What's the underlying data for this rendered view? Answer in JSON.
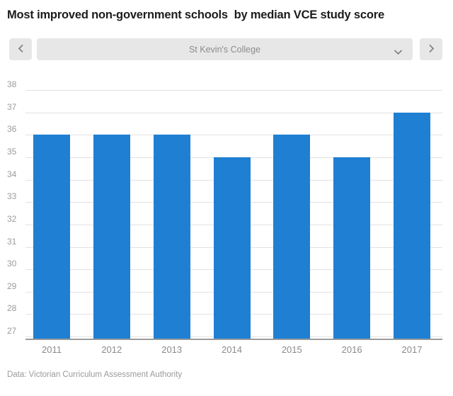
{
  "title": "Most improved non-government schools  by median VCE study score",
  "controls": {
    "selected_school": "St Kevin's College",
    "prev_icon": "chevron-left",
    "next_icon": "chevron-right",
    "dropdown_icon": "chevron-down"
  },
  "chart_data": {
    "type": "bar",
    "categories": [
      "2011",
      "2012",
      "2013",
      "2014",
      "2015",
      "2016",
      "2017"
    ],
    "values": [
      36,
      36,
      36,
      35,
      36,
      35,
      37
    ],
    "title": "Most improved non-government schools  by median VCE study score",
    "xlabel": "",
    "ylabel": "",
    "ylim": [
      27,
      38
    ],
    "yticks": [
      38,
      37,
      36,
      35,
      34,
      33,
      32,
      31,
      30,
      29,
      28,
      27
    ],
    "grid": true,
    "legend": false,
    "bar_color": "#1f7fd2"
  },
  "footer": {
    "source": "Data: Victorian Curriculum Assessment Authority"
  },
  "colors": {
    "bar": "#1f7fd2",
    "control_bg": "#e7e7e7",
    "control_text": "#8c8c8c",
    "chevron": "#7e7e7e",
    "grid_line": "#e2e2e2",
    "axis_line": "#9b9b9b",
    "y_tick_text": "#9c9c9c",
    "x_tick_text": "#8a8a8a",
    "title_text": "#1c1c1c",
    "source_text": "#9a9a9a"
  }
}
